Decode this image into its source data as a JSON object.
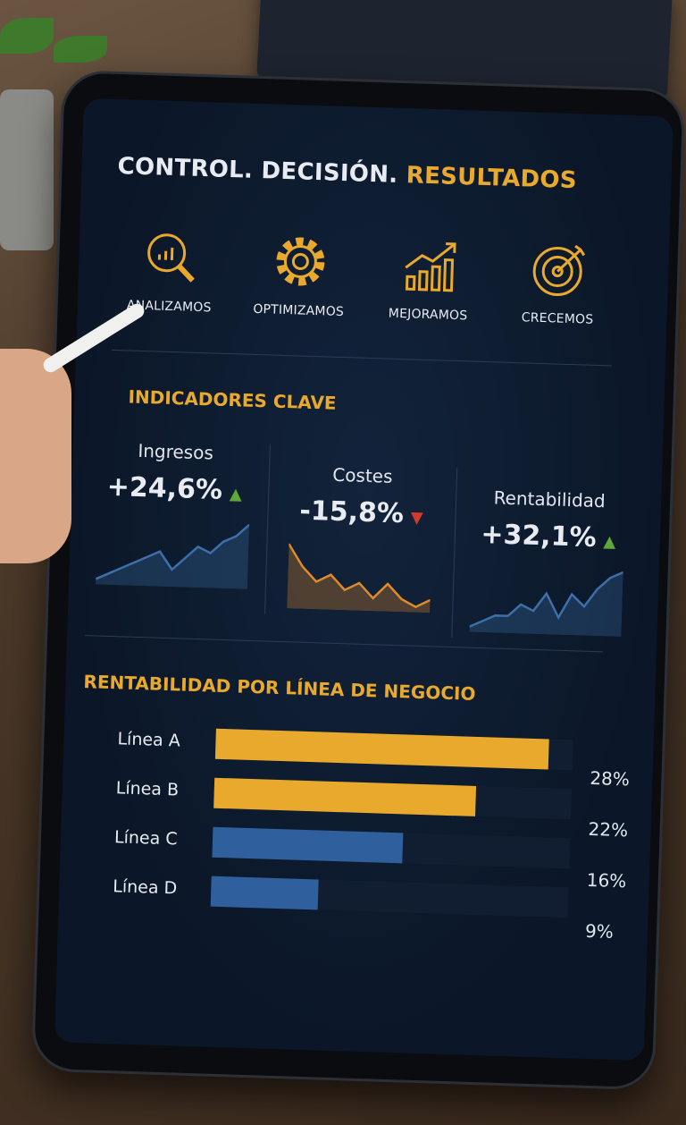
{
  "header": {
    "title_main": "CONTROL. DECISIÓN.",
    "title_accent": "RESULTADOS"
  },
  "steps": [
    {
      "label": "ANALIZAMOS",
      "icon": "magnifier-chart-icon"
    },
    {
      "label": "OPTIMIZAMOS",
      "icon": "gear-icon"
    },
    {
      "label": "MEJORAMOS",
      "icon": "bar-chart-arrow-icon"
    },
    {
      "label": "CRECEMOS",
      "icon": "target-icon"
    }
  ],
  "kpis": {
    "title": "INDICADORES CLAVE",
    "items": [
      {
        "label": "Ingresos",
        "value": "+24,6%",
        "trend": "up",
        "color": "#3d6fa8",
        "spark": [
          2,
          3,
          4,
          5,
          6,
          7,
          4,
          6,
          8,
          7,
          9,
          10,
          12
        ]
      },
      {
        "label": "Costes",
        "value": "-15,8%",
        "trend": "down",
        "color": "#e08a2a",
        "spark": [
          12,
          9,
          7,
          8,
          6,
          7,
          5,
          7,
          5,
          4,
          5
        ]
      },
      {
        "label": "Rentabilidad",
        "value": "+32,1%",
        "trend": "up",
        "color": "#3d6fa8",
        "spark": [
          2,
          3,
          4,
          4,
          6,
          5,
          8,
          4,
          8,
          6,
          9,
          11,
          12
        ]
      }
    ]
  },
  "lines": {
    "title": "RENTABILIDAD POR LÍNEA DE NEGOCIO",
    "items": [
      {
        "name": "Línea A",
        "value": 28,
        "label": "28%",
        "color": "#e9a92c"
      },
      {
        "name": "Línea B",
        "value": 22,
        "label": "22%",
        "color": "#e9a92c"
      },
      {
        "name": "Línea C",
        "value": 16,
        "label": "16%",
        "color": "#2f5f9c"
      },
      {
        "name": "Línea D",
        "value": 9,
        "label": "9%",
        "color": "#2f5f9c"
      }
    ]
  },
  "colors": {
    "accent": "#e9a92c",
    "up": "#5fa83a",
    "down": "#d23a2c",
    "screen": "#0b1728"
  }
}
